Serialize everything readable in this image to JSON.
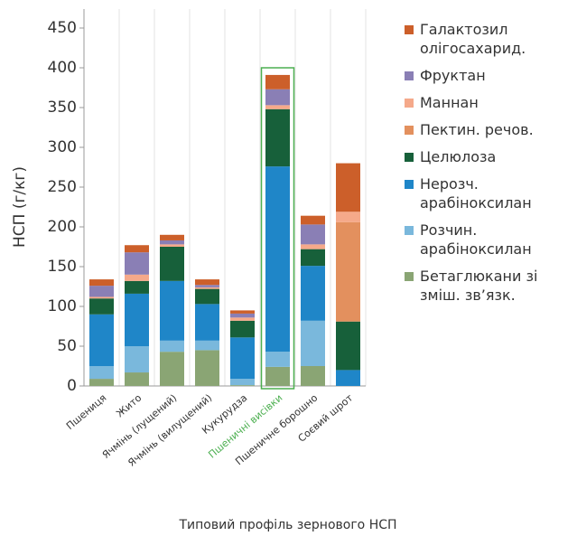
{
  "chart_data": {
    "type": "stacked_bar",
    "x_title": "Типовий профіль зернового НСП",
    "y_title": "НСП (г/кг)",
    "categories": [
      "Пшениця",
      "Жито",
      "Ячмінь (лущений)",
      "Ячмінь (вилущений)",
      "Кукурудза",
      "Пшеничні висівки",
      "Пшеничне борошно",
      "Соєвий шрот"
    ],
    "highlight_index": 5,
    "highlight_color": "#4caf50",
    "ylim": [
      0,
      450
    ],
    "yticks": [
      0,
      50,
      100,
      150,
      200,
      250,
      300,
      350,
      400,
      450
    ],
    "series": [
      {
        "name": "Галактозил олігосахарид.",
        "color": "#cc5f2a",
        "values": [
          8,
          9,
          7,
          7,
          4,
          18,
          11,
          61
        ]
      },
      {
        "name": "Фруктан",
        "color": "#8a7fb5",
        "values": [
          14,
          28,
          5,
          3,
          5,
          20,
          25,
          0
        ]
      },
      {
        "name": "Маннан",
        "color": "#f5a98a",
        "values": [
          2,
          8,
          3,
          2,
          4,
          5,
          6,
          13
        ]
      },
      {
        "name": "Пектин. речов.",
        "color": "#e3905e",
        "values": [
          0,
          0,
          0,
          0,
          0,
          0,
          0,
          125
        ]
      },
      {
        "name": "Целюлоза",
        "color": "#17603a",
        "values": [
          20,
          16,
          43,
          19,
          21,
          72,
          21,
          61
        ]
      },
      {
        "name": "Нерозч. арабіноксилан",
        "color": "#1f86c8",
        "values": [
          65,
          66,
          75,
          46,
          52,
          233,
          69,
          20
        ]
      },
      {
        "name": "Розчин. арабіноксилан",
        "color": "#7ab8dc",
        "values": [
          16,
          33,
          14,
          12,
          8,
          19,
          57,
          0
        ]
      },
      {
        "name": "Бетаглюкани зі зміш. зв’язк.",
        "color": "#8aa574",
        "values": [
          9,
          17,
          43,
          45,
          1,
          24,
          25,
          0
        ]
      }
    ]
  }
}
